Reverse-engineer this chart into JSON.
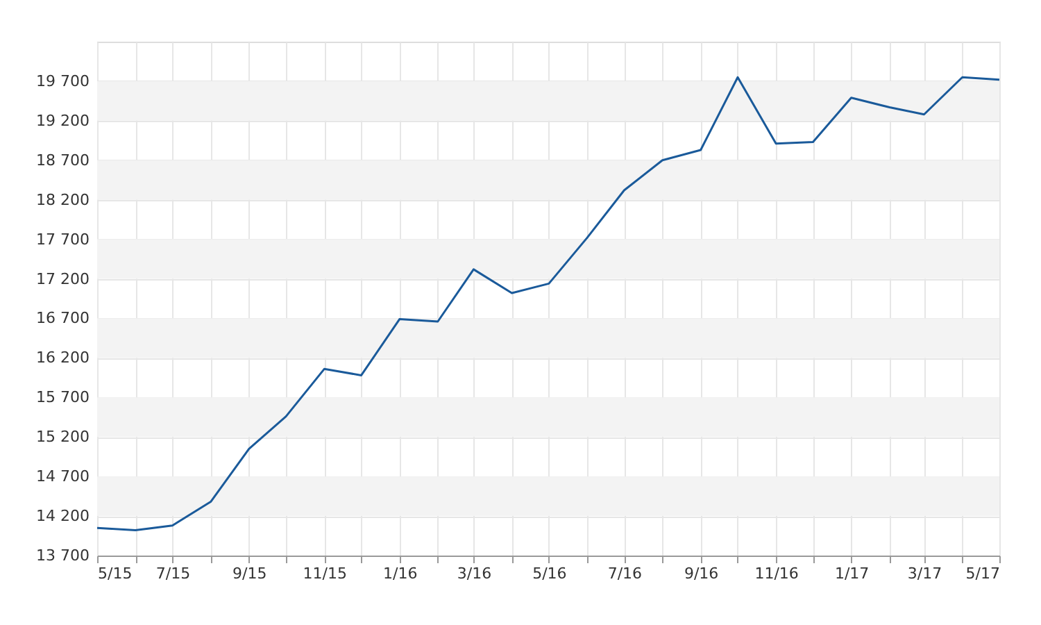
{
  "chart_data": {
    "type": "line",
    "x": [
      "2015-05",
      "2015-06",
      "2015-07",
      "2015-08",
      "2015-09",
      "2015-10",
      "2015-11",
      "2015-12",
      "2016-01",
      "2016-02",
      "2016-03",
      "2016-04",
      "2016-05",
      "2016-06",
      "2016-07",
      "2016-08",
      "2016-09",
      "2016-10",
      "2016-11",
      "2016-12",
      "2017-01",
      "2017-02",
      "2017-03",
      "2017-04",
      "2017-05"
    ],
    "series": [
      {
        "color": "#1a5a9a",
        "values": [
          14050,
          14020,
          14080,
          14380,
          15050,
          15460,
          16060,
          15980,
          16690,
          16660,
          17320,
          17020,
          17140,
          17720,
          18320,
          18700,
          18830,
          19750,
          18910,
          18930,
          19490,
          19370,
          19280,
          19750,
          19720
        ]
      }
    ],
    "xlim": [
      "2015-05",
      "2017-05"
    ],
    "xticks": [
      {
        "value": "2015-05",
        "label": "5/15"
      },
      {
        "value": "2015-06",
        "label": null
      },
      {
        "value": "2015-07",
        "label": "7/15"
      },
      {
        "value": "2015-08",
        "label": null
      },
      {
        "value": "2015-09",
        "label": "9/15"
      },
      {
        "value": "2015-10",
        "label": null
      },
      {
        "value": "2015-11",
        "label": "11/15"
      },
      {
        "value": "2015-12",
        "label": null
      },
      {
        "value": "2016-01",
        "label": "1/16"
      },
      {
        "value": "2016-02",
        "label": null
      },
      {
        "value": "2016-03",
        "label": "3/16"
      },
      {
        "value": "2016-04",
        "label": null
      },
      {
        "value": "2016-05",
        "label": "5/16"
      },
      {
        "value": "2016-06",
        "label": null
      },
      {
        "value": "2016-07",
        "label": "7/16"
      },
      {
        "value": "2016-08",
        "label": null
      },
      {
        "value": "2016-09",
        "label": "9/16"
      },
      {
        "value": "2016-10",
        "label": null
      },
      {
        "value": "2016-11",
        "label": "11/16"
      },
      {
        "value": "2016-12",
        "label": null
      },
      {
        "value": "2017-01",
        "label": "1/17"
      },
      {
        "value": "2017-02",
        "label": null
      },
      {
        "value": "2017-03",
        "label": "3/17"
      },
      {
        "value": "2017-04",
        "label": null
      },
      {
        "value": "2017-05",
        "label": "5/17"
      }
    ],
    "ylim": [
      13700,
      20200
    ],
    "yticks": [
      {
        "value": 13700,
        "label": "13 700"
      },
      {
        "value": 14200,
        "label": "14 200"
      },
      {
        "value": 14700,
        "label": "14 700"
      },
      {
        "value": 15200,
        "label": "15 200"
      },
      {
        "value": 15700,
        "label": "15 700"
      },
      {
        "value": 16200,
        "label": "16 200"
      },
      {
        "value": 16700,
        "label": "16 700"
      },
      {
        "value": 17200,
        "label": "17 200"
      },
      {
        "value": 17700,
        "label": "17 700"
      },
      {
        "value": 18200,
        "label": "18 200"
      },
      {
        "value": 18700,
        "label": "18 700"
      },
      {
        "value": 19200,
        "label": "19 200"
      },
      {
        "value": 19700,
        "label": "19 700"
      }
    ],
    "bands": [
      {
        "axis": "y",
        "from": 14200,
        "to": 14700,
        "color": "#f3f3f3"
      },
      {
        "axis": "y",
        "from": 15200,
        "to": 15700,
        "color": "#f3f3f3"
      },
      {
        "axis": "y",
        "from": 16200,
        "to": 16700,
        "color": "#f3f3f3"
      },
      {
        "axis": "y",
        "from": 17200,
        "to": 17700,
        "color": "#f3f3f3"
      },
      {
        "axis": "y",
        "from": 18200,
        "to": 18700,
        "color": "#f3f3f3"
      },
      {
        "axis": "y",
        "from": 19200,
        "to": 19700,
        "color": "#f3f3f3"
      }
    ],
    "grid": true,
    "marker": "none",
    "line_style": "solid"
  }
}
